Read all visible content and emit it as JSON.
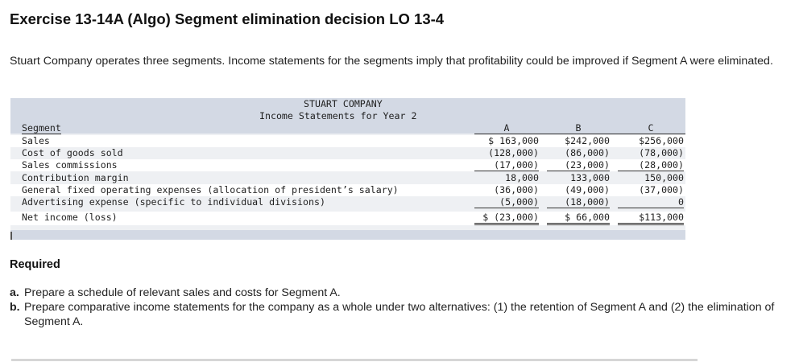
{
  "title": "Exercise 13-14A (Algo) Segment elimination decision LO 13-4",
  "intro": "Stuart Company operates three segments. Income statements for the segments imply that profitability could be improved if Segment A were eliminated.",
  "statement": {
    "company": "STUART COMPANY",
    "subtitle": "Income Statements for Year 2",
    "segment_label": "Segment",
    "columns": [
      "A",
      "B",
      "C"
    ],
    "rows": [
      {
        "label": "Sales",
        "a": "$ 163,000",
        "b": "$242,000",
        "c": "$256,000"
      },
      {
        "label": "Cost of goods sold",
        "a": "(128,000)",
        "b": "(86,000)",
        "c": "(78,000)"
      },
      {
        "label": "Sales commissions",
        "a": "(17,000)",
        "b": "(23,000)",
        "c": "(28,000)"
      },
      {
        "label": "Contribution margin",
        "a": "18,000",
        "b": "133,000",
        "c": "150,000"
      },
      {
        "label": "General fixed operating expenses (allocation of president’s salary)",
        "a": "(36,000)",
        "b": "(49,000)",
        "c": "(37,000)"
      },
      {
        "label": "Advertising expense (specific to individual divisions)",
        "a": "(5,000)",
        "b": "(18,000)",
        "c": "0"
      },
      {
        "label": "Net income (loss)",
        "a": "$ (23,000)",
        "b": "$ 66,000",
        "c": "$113,000"
      }
    ]
  },
  "required": {
    "heading": "Required",
    "items": [
      {
        "letter": "a.",
        "text": "Prepare a schedule of relevant sales and costs for Segment A."
      },
      {
        "letter": "b.",
        "text": "Prepare comparative income statements for the company as a whole under two alternatives: (1) the retention of Segment A and (2) the elimination of Segment A."
      }
    ]
  }
}
